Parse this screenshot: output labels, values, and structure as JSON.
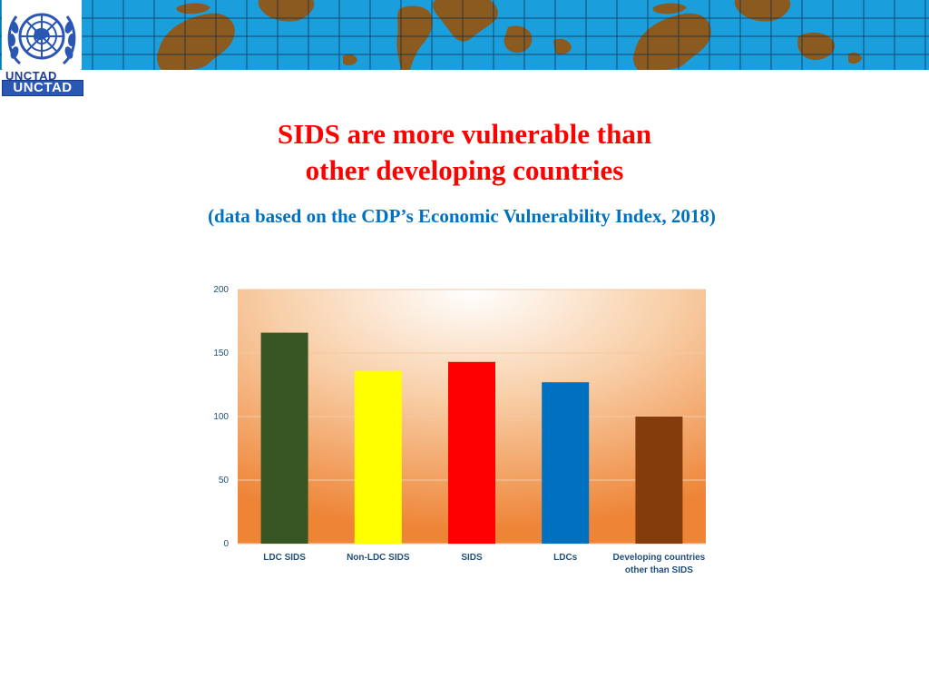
{
  "header": {
    "logo_text_top": "UNCTAD",
    "logo_text_box": "UNCTAD"
  },
  "title_line1": "SIDS are more vulnerable than",
  "title_line2": "other developing countries",
  "subtitle": "(data based on the CDP’s Economic Vulnerability Index, 2018)",
  "colors": {
    "banner": "#1a9fdc",
    "land": "#8b5a1e",
    "title": "#ff0000",
    "subtitle": "#0070c0"
  },
  "chart_data": {
    "type": "bar",
    "categories": [
      [
        "LDC SIDS"
      ],
      [
        "Non-LDC SIDS"
      ],
      [
        "SIDS"
      ],
      [
        "LDCs"
      ],
      [
        "Developing countries",
        "other than SIDS"
      ]
    ],
    "values": [
      166,
      136,
      143,
      127,
      100
    ],
    "colors": [
      "#375623",
      "#ffff00",
      "#ff0000",
      "#0070c0",
      "#843c0c"
    ],
    "ylim": [
      0,
      200
    ],
    "yticks": [
      0,
      50,
      100,
      150,
      200
    ],
    "grid": true,
    "background": "radial gradient white to orange"
  }
}
